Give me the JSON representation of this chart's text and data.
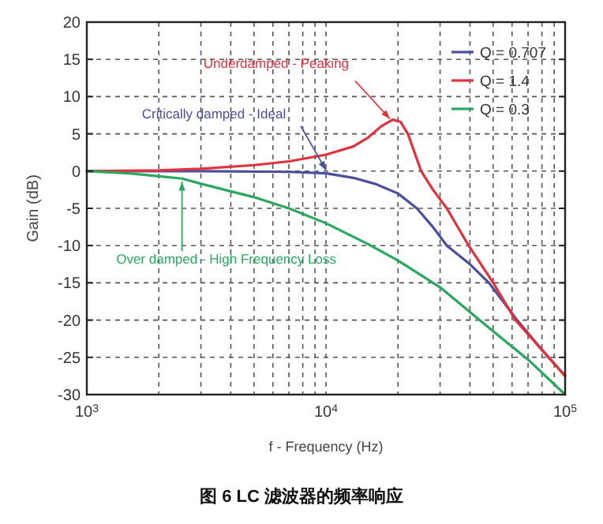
{
  "chart_data": {
    "type": "line",
    "title": "图 6 LC 滤波器的频率响应",
    "xlabel": "f - Frequency (Hz)",
    "ylabel": "Gain (dB)",
    "log": "x",
    "xlim": [
      1000,
      100000
    ],
    "ylim": [
      -30,
      20
    ],
    "xticks": [
      {
        "value": 1000,
        "label": "10$^{3}$"
      },
      {
        "value": 10000,
        "label": "10$^{4}$"
      },
      {
        "value": 100000,
        "label": "10$^{5}$"
      }
    ],
    "yticks": [
      -30,
      -25,
      -20,
      -15,
      -10,
      -5,
      0,
      5,
      10,
      15,
      20
    ],
    "grid": true,
    "legend": "top right",
    "marker": "none",
    "line_style": "solid",
    "series": [
      {
        "name": "Q = 0.707",
        "color": "#4a4f9c",
        "x": [
          1000,
          3000,
          7000,
          10000,
          13000,
          16000,
          20000,
          24000,
          28000,
          32000,
          40000,
          48000,
          63000,
          80000,
          100000
        ],
        "values": [
          0,
          0,
          -0.1,
          -0.3,
          -0.9,
          -1.7,
          -3,
          -5,
          -7.5,
          -10,
          -12.5,
          -15,
          -20,
          -24,
          -27.5
        ]
      },
      {
        "name": "Q = 1.4",
        "color": "#e0323c",
        "x": [
          1000,
          2000,
          3000,
          5000,
          7000,
          10000,
          13000,
          15000,
          17000,
          19000,
          20500,
          22000,
          25000,
          28000,
          32000,
          39500,
          50000,
          62000,
          80000,
          100000
        ],
        "values": [
          0,
          0.1,
          0.3,
          0.8,
          1.3,
          2.2,
          3.3,
          4.5,
          6,
          6.9,
          6.6,
          5,
          0,
          -2.5,
          -5,
          -10,
          -15,
          -20,
          -24,
          -27.5
        ]
      },
      {
        "name": "Q = 0.3",
        "color": "#2aa860",
        "x": [
          1000,
          1500,
          2000,
          2500,
          3000,
          5000,
          7000,
          10000,
          15000,
          20000,
          30000,
          50000,
          70000,
          100000
        ],
        "values": [
          0,
          -0.3,
          -0.7,
          -1,
          -1.7,
          -3.5,
          -5,
          -7,
          -9.8,
          -12,
          -15.6,
          -21.5,
          -25.3,
          -30
        ]
      }
    ],
    "annotations": [
      {
        "text": "Critically damped - Ideal",
        "x": 10000,
        "y": -0.3
      },
      {
        "text": "Underdamped - Peaking",
        "x": 18500,
        "y": 6.6
      },
      {
        "text": "Over damped - High Frequency Loss",
        "x": 2500,
        "y": -1
      }
    ]
  }
}
